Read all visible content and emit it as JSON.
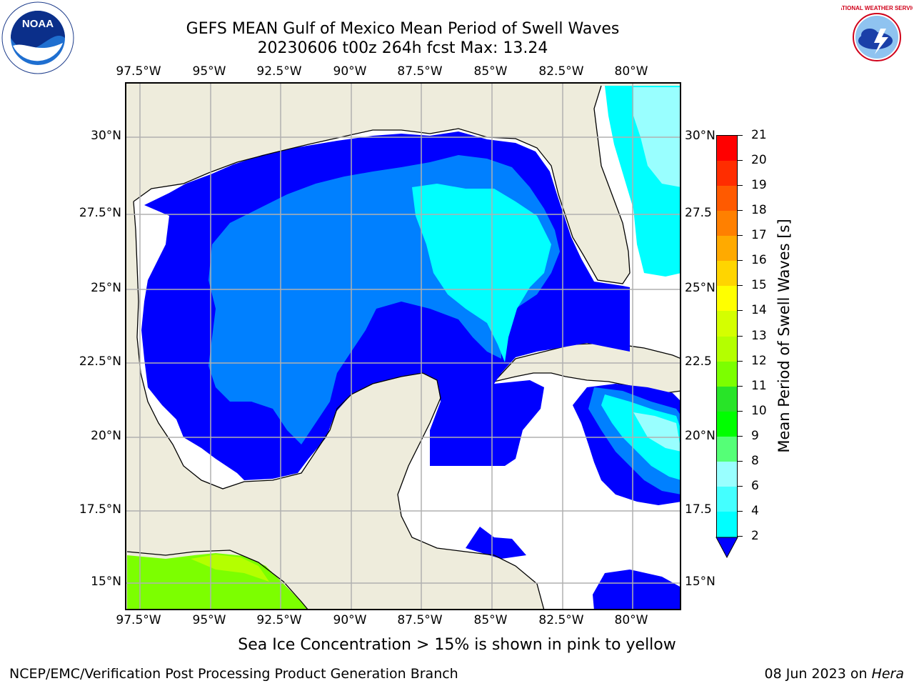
{
  "title": {
    "line1": "GEFS MEAN Gulf of Mexico Mean Period of Swell Waves",
    "line2": "20230606 t00z 264h fcst   Max: 13.24"
  },
  "logos": {
    "left": {
      "text": "NOAA",
      "icon": "noaa-logo"
    },
    "right": {
      "text": "NATIONAL WEATHER SERVICE",
      "icon": "nws-logo"
    }
  },
  "map": {
    "lon_labels": [
      "97.5°W",
      "95°W",
      "92.5°W",
      "90°W",
      "87.5°W",
      "85°W",
      "82.5°W",
      "80°W"
    ],
    "lat_labels_left": [
      "30°N",
      "27.5°N",
      "25°N",
      "22.5°N",
      "20°N",
      "17.5°N",
      "15°N"
    ],
    "lat_labels_right": [
      "30°N",
      "27.5",
      "25°N",
      "22.5",
      "20°N",
      "17.5",
      "15°N"
    ],
    "land_color": "#eeecdc",
    "ocean_color": "#ffffff",
    "gridline_color": "#b0b0b0"
  },
  "colorbar": {
    "title": "Mean Period of Swell Waves [s]",
    "ticks": [
      "21",
      "20",
      "19",
      "18",
      "17",
      "16",
      "15",
      "14",
      "13",
      "12",
      "11",
      "10",
      "9",
      "8",
      "6",
      "4",
      "2"
    ],
    "colors": [
      "#ff0000",
      "#ff2d00",
      "#ff5a00",
      "#ff8000",
      "#ffaa00",
      "#ffd500",
      "#ffff00",
      "#d4ff00",
      "#b4ff00",
      "#7cff00",
      "#28e428",
      "#00ff00",
      "#55ff77",
      "#99ffff",
      "#44ffff",
      "#00ffff",
      "#0080ff"
    ],
    "extend_color": "#0000ff"
  },
  "footer": {
    "ice_note": "Sea Ice Concentration > 15% is shown in pink to yellow",
    "left": "NCEP/EMC/Verification Post Processing Product Generation Branch",
    "right_date": "08 Jun 2023 on ",
    "right_host": "Hera"
  }
}
